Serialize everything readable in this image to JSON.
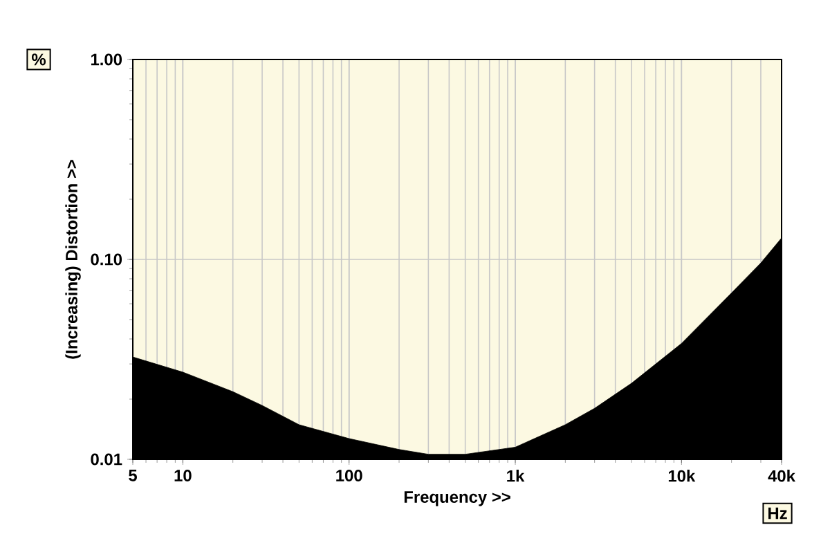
{
  "chart_data": {
    "type": "area",
    "xlabel": "Frequency >>",
    "ylabel": "(Increasing) Distortion >>",
    "annotations": [
      "%",
      "Hz"
    ],
    "x": [
      5,
      10,
      20,
      30,
      50,
      100,
      200,
      300,
      500,
      1000,
      2000,
      3000,
      5000,
      10000,
      20000,
      30000,
      40000
    ],
    "series": [
      {
        "color": "#000000",
        "values": [
          0.0325,
          0.0273,
          0.0218,
          0.0186,
          0.0149,
          0.0127,
          0.0112,
          0.0106,
          0.0106,
          0.0115,
          0.0149,
          0.018,
          0.024,
          0.038,
          0.068,
          0.096,
          0.128
        ]
      }
    ],
    "xlim": [
      5,
      40000
    ],
    "ylim": [
      0.01,
      1
    ],
    "xticks": [
      5,
      10,
      100,
      {
        "value": 1000,
        "label": "1k"
      },
      {
        "value": 10000,
        "label": "10k"
      },
      {
        "value": 40000,
        "label": "40k"
      }
    ],
    "yticks": [
      {
        "value": 0.01,
        "label": "0.01"
      },
      {
        "value": 0.1,
        "label": "0.10"
      },
      {
        "value": 1,
        "label": "1.00"
      }
    ],
    "log": "xy",
    "grid": true,
    "marker": "none"
  }
}
